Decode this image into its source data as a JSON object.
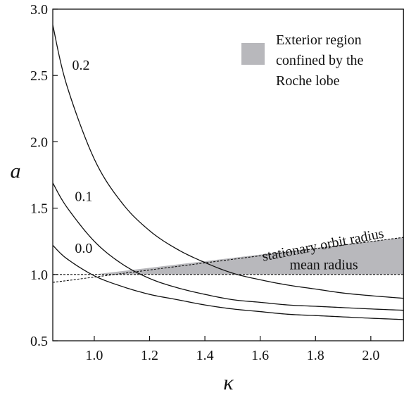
{
  "chart_data": {
    "type": "line",
    "xlabel": "κ",
    "ylabel": "a",
    "xlim": [
      0.85,
      2.12
    ],
    "ylim": [
      0.5,
      3.0
    ],
    "x_ticks": [
      1.0,
      1.2,
      1.4,
      1.6,
      1.8,
      2.0
    ],
    "y_ticks": [
      0.5,
      1.0,
      1.5,
      2.0,
      2.5,
      3.0
    ],
    "x_tick_labels": [
      "1.0",
      "1.2",
      "1.4",
      "1.6",
      "1.8",
      "2.0"
    ],
    "y_tick_labels": [
      "0.5",
      "1.0",
      "1.5",
      "2.0",
      "2.5",
      "3.0"
    ],
    "grid": false,
    "series": [
      {
        "name": "0.2",
        "style": "solid",
        "x": [
          0.85,
          0.9,
          1.0,
          1.1,
          1.2,
          1.3,
          1.4,
          1.5,
          1.6,
          1.7,
          1.8,
          1.9,
          2.0,
          2.12
        ],
        "y": [
          2.88,
          2.43,
          1.87,
          1.54,
          1.33,
          1.19,
          1.09,
          1.01,
          0.96,
          0.92,
          0.89,
          0.86,
          0.84,
          0.82
        ]
      },
      {
        "name": "0.1",
        "style": "solid",
        "x": [
          0.85,
          0.9,
          1.0,
          1.1,
          1.2,
          1.3,
          1.4,
          1.5,
          1.6,
          1.7,
          1.8,
          1.9,
          2.0,
          2.12
        ],
        "y": [
          1.69,
          1.51,
          1.25,
          1.08,
          0.97,
          0.9,
          0.85,
          0.81,
          0.79,
          0.77,
          0.76,
          0.75,
          0.74,
          0.73
        ]
      },
      {
        "name": "0.0",
        "style": "solid",
        "x": [
          0.85,
          0.9,
          1.0,
          1.1,
          1.2,
          1.3,
          1.4,
          1.5,
          1.6,
          1.7,
          1.8,
          1.9,
          2.0,
          2.12
        ],
        "y": [
          1.22,
          1.12,
          0.99,
          0.91,
          0.85,
          0.81,
          0.77,
          0.74,
          0.72,
          0.7,
          0.69,
          0.68,
          0.67,
          0.66
        ]
      },
      {
        "name": "stationary orbit radius",
        "style": "dashed",
        "x": [
          0.85,
          2.12
        ],
        "y": [
          0.94,
          1.28
        ]
      },
      {
        "name": "mean radius",
        "style": "dashed",
        "x": [
          0.85,
          2.12
        ],
        "y": [
          1.0,
          1.0
        ]
      }
    ],
    "shaded_region": {
      "fill": "#b8b8bc",
      "x": [
        1.0,
        2.12
      ],
      "lower": [
        1.0,
        1.0
      ],
      "upper": [
        1.0,
        1.28
      ]
    },
    "legend": {
      "placement": "top-right",
      "swatch_color": "#b8b8bc",
      "lines": [
        "Exterior region",
        "confined by the",
        "Roche lobe"
      ]
    },
    "curve_labels": [
      {
        "text": "0.2",
        "x": 0.92,
        "y": 2.58
      },
      {
        "text": "0.1",
        "x": 0.93,
        "y": 1.59
      },
      {
        "text": "0.0",
        "x": 0.93,
        "y": 1.2
      }
    ],
    "annotations": [
      {
        "text": "stationary orbit radius",
        "x": 1.83,
        "y": 1.19,
        "angle_deg": -11
      },
      {
        "text": "mean radius",
        "x": 1.83,
        "y": 1.04,
        "angle_deg": 0
      }
    ]
  }
}
